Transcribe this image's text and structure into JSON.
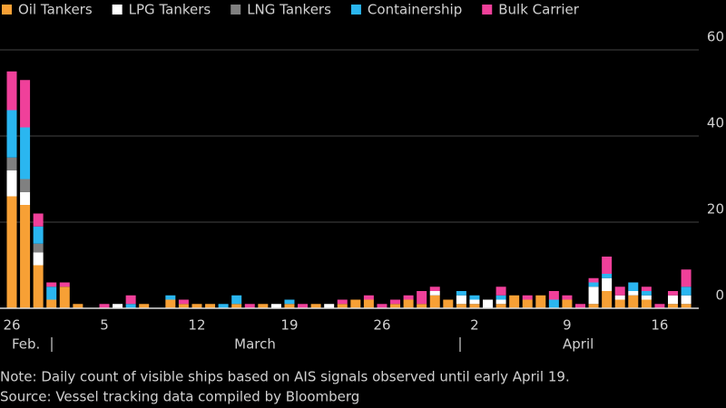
{
  "chart_data": {
    "type": "stacked-bar",
    "categories": [
      "26",
      null,
      null,
      null,
      null,
      null,
      null,
      "5",
      null,
      null,
      null,
      null,
      null,
      null,
      "12",
      null,
      null,
      null,
      null,
      null,
      null,
      "19",
      null,
      null,
      null,
      null,
      null,
      null,
      "26",
      null,
      null,
      null,
      null,
      null,
      null,
      "2",
      null,
      null,
      null,
      null,
      null,
      null,
      "9",
      null,
      null,
      null,
      null,
      null,
      null,
      "16",
      null,
      null
    ],
    "months": [
      "Feb.",
      "March",
      "April"
    ],
    "series": [
      {
        "name": "Oil Tankers",
        "color": "#f7a035",
        "values": [
          26,
          24,
          10,
          2,
          5,
          1,
          0,
          0,
          0,
          0,
          1,
          0,
          2,
          1,
          1,
          1,
          0,
          1,
          0,
          1,
          0,
          1,
          0,
          1,
          0,
          1,
          2,
          2,
          0,
          1,
          2,
          1,
          3,
          2,
          1,
          1,
          0,
          1,
          3,
          2,
          3,
          0,
          2,
          0,
          1,
          4,
          2,
          3,
          2,
          0,
          1,
          1
        ]
      },
      {
        "name": "LPG Tankers",
        "color": "#ffffff",
        "values": [
          6,
          3,
          3,
          0,
          0,
          0,
          0,
          0,
          1,
          0,
          0,
          0,
          0,
          0,
          0,
          0,
          0,
          0,
          0,
          0,
          1,
          0,
          0,
          0,
          1,
          0,
          0,
          0,
          0,
          0,
          0,
          0,
          1,
          0,
          2,
          1,
          2,
          1,
          0,
          0,
          0,
          0,
          0,
          0,
          4,
          3,
          1,
          1,
          1,
          0,
          2,
          2
        ]
      },
      {
        "name": "LNG Tankers",
        "color": "#808080",
        "values": [
          3,
          3,
          2,
          0,
          0,
          0,
          0,
          0,
          0,
          0,
          0,
          0,
          0,
          0,
          0,
          0,
          0,
          0,
          0,
          0,
          0,
          0,
          0,
          0,
          0,
          0,
          0,
          0,
          0,
          0,
          0,
          0,
          0,
          0,
          0,
          0,
          0,
          0,
          0,
          0,
          0,
          0,
          0,
          0,
          0,
          0,
          0,
          0,
          0,
          0,
          0,
          0
        ]
      },
      {
        "name": "Containership",
        "color": "#2ab6f0",
        "values": [
          11,
          12,
          4,
          3,
          0,
          0,
          0,
          0,
          0,
          1,
          0,
          0,
          1,
          0,
          0,
          0,
          1,
          2,
          0,
          0,
          0,
          1,
          0,
          0,
          0,
          0,
          0,
          0,
          0,
          0,
          0,
          0,
          0,
          0,
          1,
          1,
          0,
          1,
          0,
          0,
          0,
          2,
          0,
          0,
          1,
          1,
          0,
          2,
          1,
          0,
          0,
          2
        ]
      },
      {
        "name": "Bulk Carrier",
        "color": "#f0409a",
        "values": [
          9,
          11,
          3,
          1,
          1,
          0,
          0,
          1,
          0,
          2,
          0,
          0,
          0,
          1,
          0,
          0,
          0,
          0,
          1,
          0,
          0,
          0,
          1,
          0,
          0,
          1,
          0,
          1,
          1,
          1,
          1,
          3,
          1,
          0,
          0,
          0,
          0,
          2,
          0,
          1,
          0,
          2,
          1,
          1,
          1,
          4,
          2,
          0,
          1,
          1,
          1,
          4
        ]
      }
    ],
    "ylim": [
      0,
      60
    ],
    "yticks": [
      0,
      20,
      40,
      60
    ],
    "grid": true,
    "notes": [
      "Note: Daily count of visible ships based on AIS signals observed until early April 19.",
      "Source: Vessel tracking data compiled by Bloomberg"
    ]
  }
}
